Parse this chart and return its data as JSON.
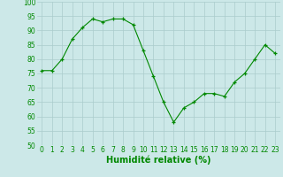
{
  "x": [
    0,
    1,
    2,
    3,
    4,
    5,
    6,
    7,
    8,
    9,
    10,
    11,
    12,
    13,
    14,
    15,
    16,
    17,
    18,
    19,
    20,
    21,
    22,
    23
  ],
  "y": [
    76,
    76,
    80,
    87,
    91,
    94,
    93,
    94,
    94,
    92,
    83,
    74,
    65,
    58,
    63,
    65,
    68,
    68,
    67,
    72,
    75,
    80,
    85,
    82
  ],
  "xlabel": "Humidité relative (%)",
  "ylim": [
    50,
    100
  ],
  "yticks": [
    50,
    55,
    60,
    65,
    70,
    75,
    80,
    85,
    90,
    95,
    100
  ],
  "xticks": [
    0,
    1,
    2,
    3,
    4,
    5,
    6,
    7,
    8,
    9,
    10,
    11,
    12,
    13,
    14,
    15,
    16,
    17,
    18,
    19,
    20,
    21,
    22,
    23
  ],
  "line_color": "#008800",
  "marker": "+",
  "bg_color": "#cce8e8",
  "grid_color": "#aacccc",
  "xlabel_fontsize": 7,
  "tick_fontsize": 5.5
}
